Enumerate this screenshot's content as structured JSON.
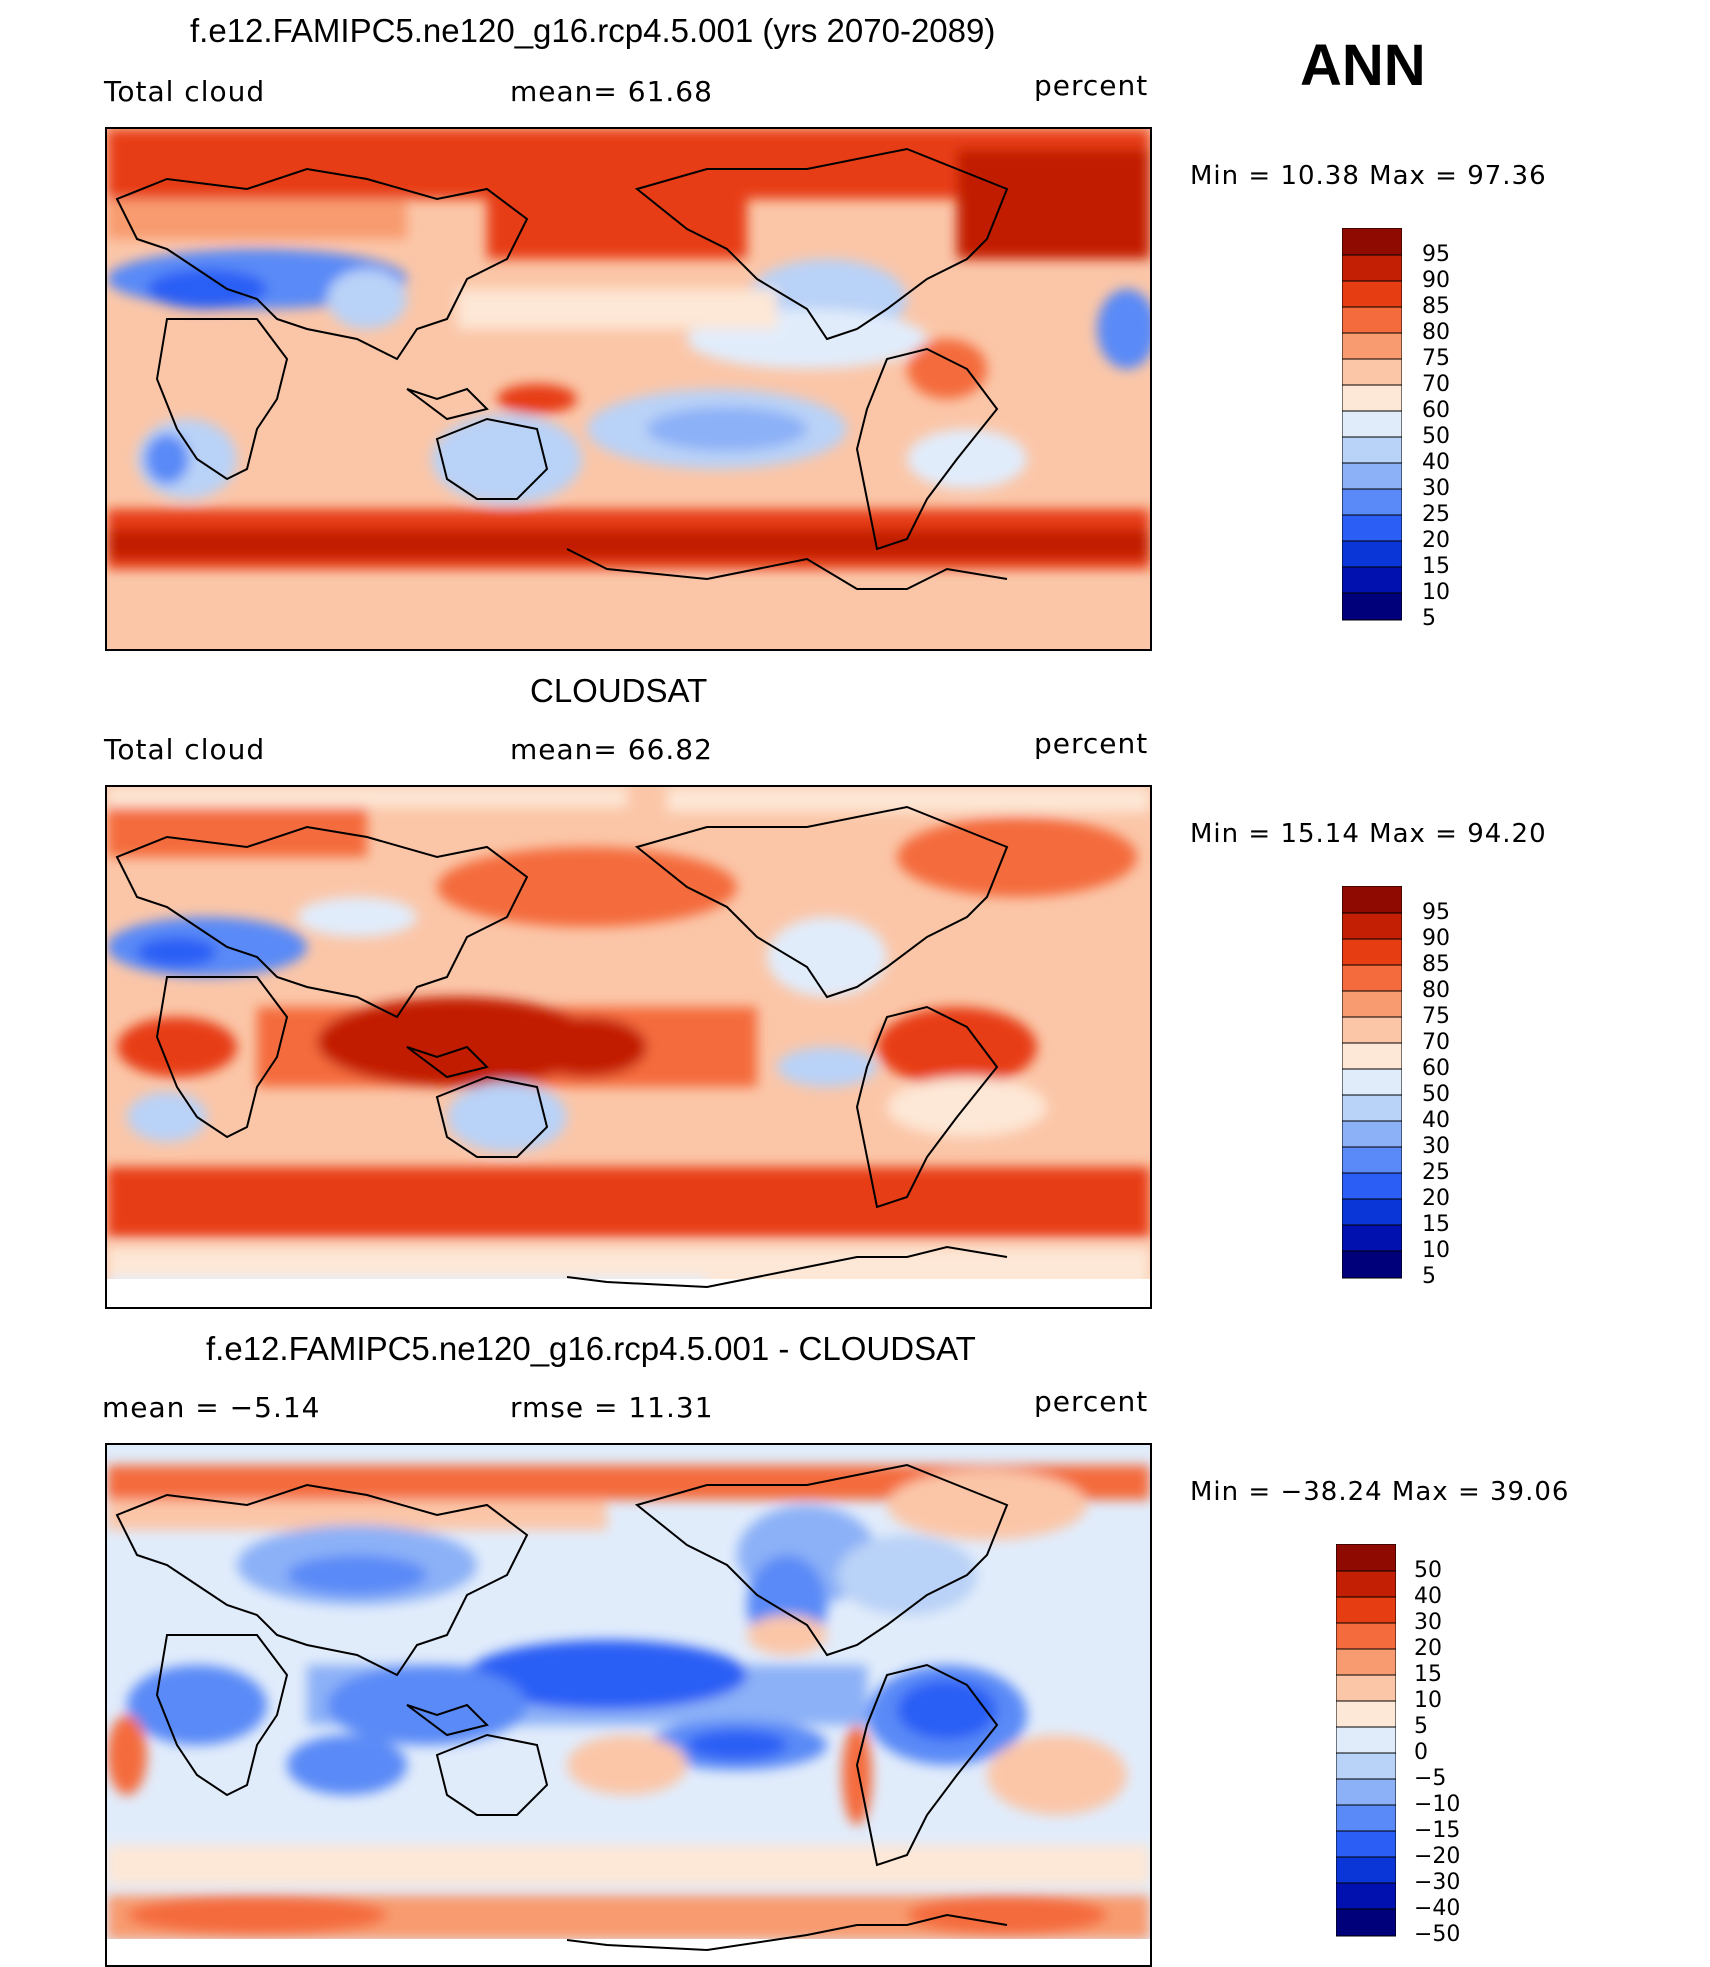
{
  "season": "ANN",
  "panels": [
    {
      "title": "f.e12.FAMIPC5.ne120_g16.rcp4.5.001 (yrs 2070-2089)",
      "left_label": "Total cloud",
      "center_label": "mean=   61.68",
      "units": "percent",
      "minmax": "Min =   10.38  Max =   97.36",
      "colorbar_labels": [
        "95",
        "90",
        "85",
        "80",
        "75",
        "70",
        "60",
        "50",
        "40",
        "30",
        "25",
        "20",
        "15",
        "10",
        "5"
      ]
    },
    {
      "title": "CLOUDSAT",
      "left_label": "Total cloud",
      "center_label": "mean=   66.82",
      "units": "percent",
      "minmax": "Min =   15.14  Max =   94.20",
      "colorbar_labels": [
        "95",
        "90",
        "85",
        "80",
        "75",
        "70",
        "60",
        "50",
        "40",
        "30",
        "25",
        "20",
        "15",
        "10",
        "5"
      ]
    },
    {
      "title": "f.e12.FAMIPC5.ne120_g16.rcp4.5.001 - CLOUDSAT",
      "left_label": "mean =   −5.14",
      "center_label": "rmse =   11.31",
      "units": "percent",
      "minmax": "Min = −38.24  Max =   39.06",
      "colorbar_labels": [
        "50",
        "40",
        "30",
        "20",
        "15",
        "10",
        "5",
        "0",
        "−5",
        "−10",
        "−15",
        "−20",
        "−30",
        "−40",
        "−50"
      ]
    }
  ],
  "colors": {
    "scale": [
      "#00007a",
      "#0011b0",
      "#0a36d8",
      "#2a5ef5",
      "#5a8af7",
      "#8cb1f7",
      "#b9d2f7",
      "#e1ecfb",
      "#fde7d6",
      "#fbc6a8",
      "#f89b70",
      "#f46c3d",
      "#e73d12",
      "#c21f04",
      "#8f0a00"
    ]
  }
}
